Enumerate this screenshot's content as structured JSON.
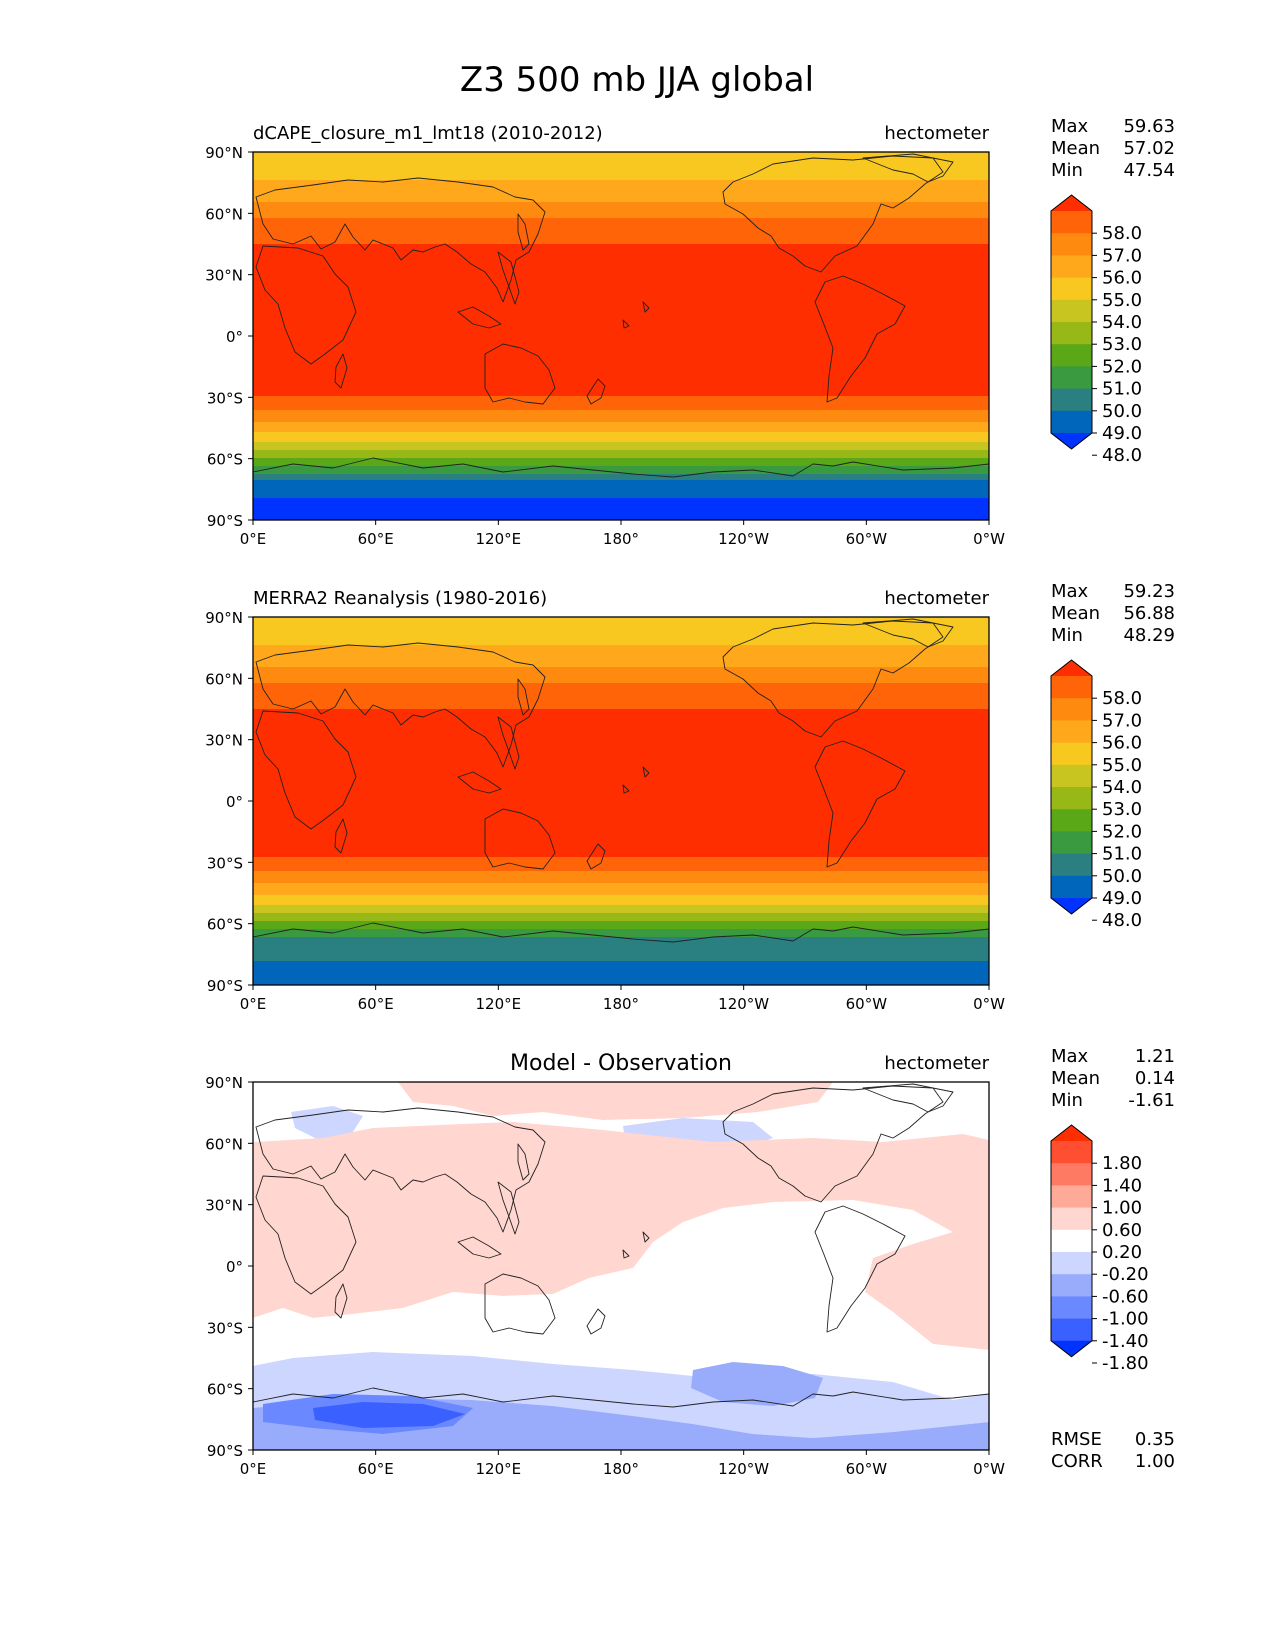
{
  "title": "Z3 500 mb JJA global",
  "xticks": [
    "0°E",
    "60°E",
    "120°E",
    "180°",
    "120°W",
    "60°W",
    "0°W"
  ],
  "yticks": [
    "90°N",
    "60°N",
    "30°N",
    "0°",
    "30°S",
    "60°S",
    "90°S"
  ],
  "panels": [
    {
      "title": "dCAPE_closure_m1_lmt18 (2010-2012)",
      "units": "hectometer",
      "stats": [
        {
          "label": "Max",
          "value": "59.63"
        },
        {
          "label": "Mean",
          "value": "57.02"
        },
        {
          "label": "Min",
          "value": "47.54"
        }
      ],
      "colorbar": {
        "colors": [
          "#0033ff",
          "#0066bb",
          "#2a8080",
          "#3a9a40",
          "#5aa818",
          "#98b818",
          "#c8c420",
          "#f8c820",
          "#ffa81c",
          "#ff8a10",
          "#ff6408",
          "#ff2e00"
        ],
        "labels": [
          "48.0",
          "49.0",
          "50.0",
          "51.0",
          "52.0",
          "53.0",
          "54.0",
          "55.0",
          "56.0",
          "57.0",
          "58.0"
        ]
      }
    },
    {
      "title": "MERRA2 Reanalysis (1980-2016)",
      "units": "hectometer",
      "stats": [
        {
          "label": "Max",
          "value": "59.23"
        },
        {
          "label": "Mean",
          "value": "56.88"
        },
        {
          "label": "Min",
          "value": "48.29"
        }
      ],
      "colorbar": {
        "colors": [
          "#0033ff",
          "#0066bb",
          "#2a8080",
          "#3a9a40",
          "#5aa818",
          "#98b818",
          "#c8c420",
          "#f8c820",
          "#ffa81c",
          "#ff8a10",
          "#ff6408",
          "#ff2e00"
        ],
        "labels": [
          "48.0",
          "49.0",
          "50.0",
          "51.0",
          "52.0",
          "53.0",
          "54.0",
          "55.0",
          "56.0",
          "57.0",
          "58.0"
        ]
      }
    },
    {
      "title": "Model - Observation",
      "units": "hectometer",
      "stats": [
        {
          "label": "Max",
          "value": "1.21"
        },
        {
          "label": "Mean",
          "value": "0.14"
        },
        {
          "label": "Min",
          "value": "-1.61"
        }
      ],
      "colorbar": {
        "colors": [
          "#0033ff",
          "#3a60ff",
          "#6a88ff",
          "#98acfb",
          "#ccd6ff",
          "#ffffff",
          "#ffd6d0",
          "#ffaa98",
          "#ff7a62",
          "#ff4e30",
          "#ff2e00"
        ],
        "labels": [
          "-1.80",
          "-1.40",
          "-1.00",
          "-0.60",
          "-0.20",
          "0.20",
          "0.60",
          "1.00",
          "1.40",
          "1.80"
        ]
      },
      "extra_stats": [
        {
          "label": "RMSE",
          "value": "0.35"
        },
        {
          "label": "CORR",
          "value": "1.00"
        }
      ]
    }
  ]
}
